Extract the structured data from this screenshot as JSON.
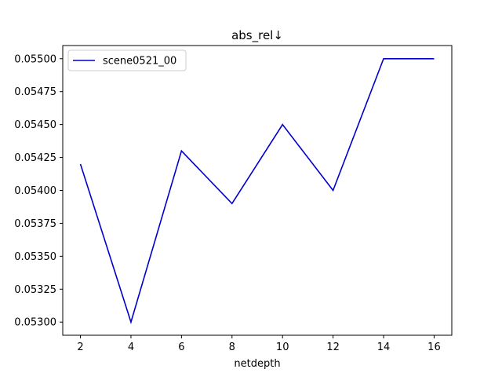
{
  "chart_data": {
    "type": "line",
    "title": "abs_rel↓",
    "xlabel": "netdepth",
    "ylabel": "",
    "x": [
      2,
      4,
      6,
      8,
      10,
      12,
      14,
      16
    ],
    "series": [
      {
        "name": "scene0521_00",
        "color": "#0000cc",
        "values": [
          0.0542,
          0.053,
          0.0543,
          0.0539,
          0.0545,
          0.054,
          0.055,
          0.055
        ]
      }
    ],
    "xlim": [
      1.3,
      16.7
    ],
    "ylim": [
      0.0529,
      0.0551
    ],
    "xticks": [
      2,
      4,
      6,
      8,
      10,
      12,
      14,
      16
    ],
    "xtick_labels": [
      "2",
      "4",
      "6",
      "8",
      "10",
      "12",
      "14",
      "16"
    ],
    "yticks": [
      0.053,
      0.05325,
      0.0535,
      0.05375,
      0.054,
      0.05425,
      0.0545,
      0.05475,
      0.055
    ],
    "ytick_labels": [
      "0.05300",
      "0.05325",
      "0.05350",
      "0.05375",
      "0.05400",
      "0.05425",
      "0.05450",
      "0.05475",
      "0.05500"
    ],
    "grid": false,
    "legend_position": "top-left"
  }
}
